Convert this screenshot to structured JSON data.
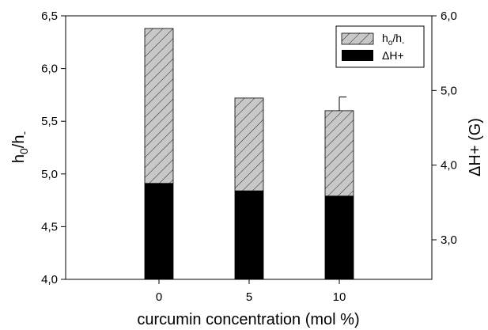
{
  "chart_data": {
    "type": "bar",
    "x": [
      "0",
      "5",
      "10"
    ],
    "xlabel": "curcumin concentration (mol %)",
    "ylabel": {
      "main": "h",
      "sub0": "0",
      "mid": "/h",
      "sub1": "-"
    },
    "y2label": "ΔH+ (G)",
    "ylim": [
      4.0,
      6.5
    ],
    "y2lim": [
      2.47,
      6.0
    ],
    "yticks": [
      "4,0",
      "4,5",
      "5,0",
      "5,5",
      "6,0",
      "6,5"
    ],
    "y2ticks": [
      "3,0",
      "4,0",
      "5,0",
      "6,0"
    ],
    "legend_position": "top-right",
    "series": [
      {
        "name": "h0/h-",
        "legend": {
          "main": "h",
          "sub0": "o",
          "mid": "/h",
          "sub1": "-"
        },
        "axis": "left",
        "fill": "hatched",
        "values": [
          6.38,
          5.72,
          5.6
        ],
        "error": [
          0,
          0,
          0.13
        ]
      },
      {
        "name": "ΔH+",
        "legend": {
          "main": "ΔH+"
        },
        "axis": "right",
        "fill": "#000000",
        "values": [
          3.76,
          3.66,
          3.59
        ]
      }
    ]
  }
}
